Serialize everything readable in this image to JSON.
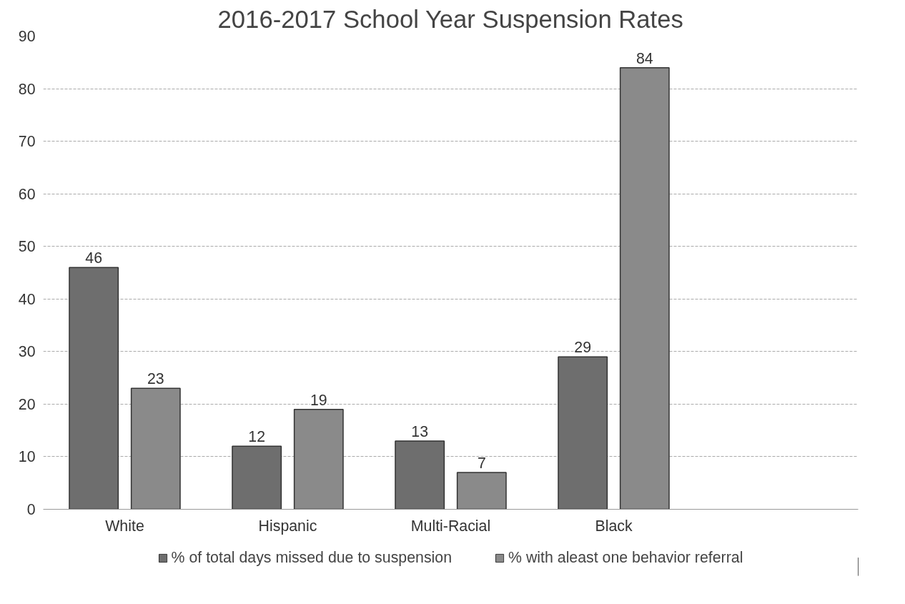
{
  "chart_data": {
    "type": "bar",
    "title": "2016-2017 School Year Suspension Rates",
    "categories": [
      "White",
      "Hispanic",
      "Multi-Racial",
      "Black",
      null
    ],
    "series": [
      {
        "name": "% of total days missed due to suspension",
        "color": "#6e6e6e",
        "values": [
          46,
          12,
          13,
          29,
          null
        ]
      },
      {
        "name": "% with aleast one behavior referral",
        "color": "#8a8a8a",
        "values": [
          23,
          19,
          7,
          84,
          null
        ]
      }
    ],
    "ylim": [
      0,
      90
    ],
    "yticks": [
      0,
      10,
      20,
      30,
      40,
      50,
      60,
      70,
      80,
      90
    ],
    "grid": "y",
    "legend": "bottom",
    "data_labels": true
  }
}
